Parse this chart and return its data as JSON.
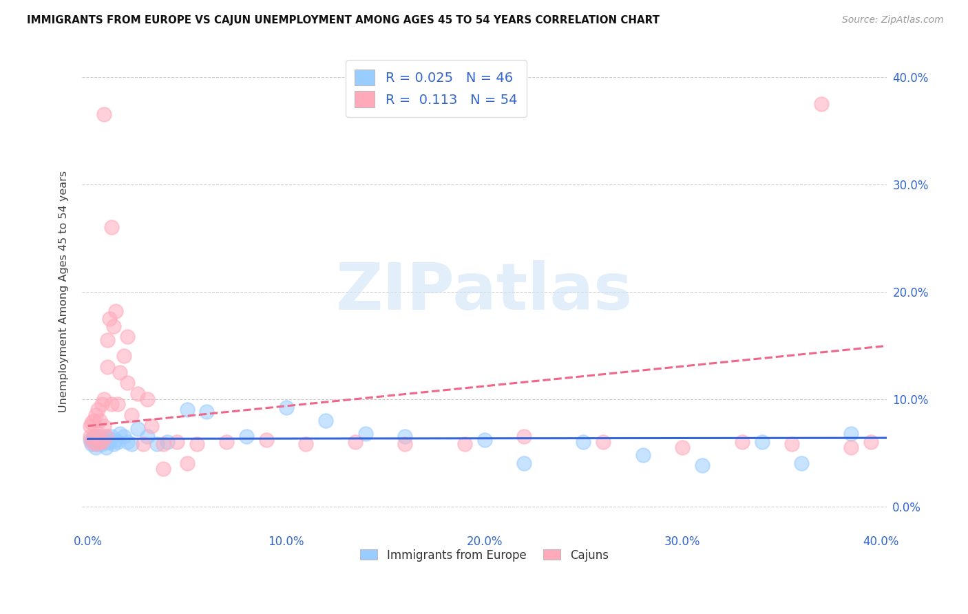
{
  "title": "IMMIGRANTS FROM EUROPE VS CAJUN UNEMPLOYMENT AMONG AGES 45 TO 54 YEARS CORRELATION CHART",
  "source": "Source: ZipAtlas.com",
  "ylabel": "Unemployment Among Ages 45 to 54 years",
  "xlim": [
    -0.003,
    0.403
  ],
  "ylim": [
    -0.022,
    0.422
  ],
  "xticks": [
    0.0,
    0.1,
    0.2,
    0.3,
    0.4
  ],
  "yticks": [
    0.0,
    0.1,
    0.2,
    0.3,
    0.4
  ],
  "xtick_labels": [
    "0.0%",
    "10.0%",
    "20.0%",
    "30.0%",
    "40.0%"
  ],
  "ytick_labels_right": [
    "0.0%",
    "10.0%",
    "20.0%",
    "30.0%",
    "40.0%"
  ],
  "legend_label1": "Immigrants from Europe",
  "legend_label2": "Cajuns",
  "R1": "0.025",
  "N1": "46",
  "R2": "0.113",
  "N2": "54",
  "blue_color": "#99ccff",
  "pink_color": "#ffaabb",
  "trend_blue_color": "#3366dd",
  "trend_pink_color": "#ee6688",
  "legend_text_color": "#3366cc",
  "background_color": "#ffffff",
  "watermark_color": "#d0e4f5",
  "blue_scatter_x": [
    0.001,
    0.002,
    0.003,
    0.003,
    0.004,
    0.004,
    0.005,
    0.005,
    0.006,
    0.006,
    0.007,
    0.007,
    0.008,
    0.008,
    0.009,
    0.009,
    0.01,
    0.01,
    0.011,
    0.012,
    0.013,
    0.014,
    0.015,
    0.016,
    0.018,
    0.02,
    0.022,
    0.025,
    0.03,
    0.035,
    0.04,
    0.05,
    0.06,
    0.08,
    0.1,
    0.12,
    0.14,
    0.16,
    0.2,
    0.22,
    0.25,
    0.28,
    0.31,
    0.34,
    0.36,
    0.385
  ],
  "blue_scatter_y": [
    0.062,
    0.058,
    0.064,
    0.06,
    0.055,
    0.065,
    0.058,
    0.062,
    0.06,
    0.065,
    0.062,
    0.058,
    0.06,
    0.062,
    0.055,
    0.065,
    0.06,
    0.062,
    0.06,
    0.065,
    0.058,
    0.062,
    0.06,
    0.068,
    0.065,
    0.06,
    0.058,
    0.072,
    0.065,
    0.058,
    0.06,
    0.09,
    0.088,
    0.065,
    0.092,
    0.08,
    0.068,
    0.065,
    0.062,
    0.04,
    0.06,
    0.048,
    0.038,
    0.06,
    0.04,
    0.068
  ],
  "pink_scatter_x": [
    0.001,
    0.001,
    0.002,
    0.002,
    0.003,
    0.003,
    0.004,
    0.004,
    0.005,
    0.005,
    0.006,
    0.006,
    0.007,
    0.007,
    0.008,
    0.008,
    0.009,
    0.01,
    0.01,
    0.011,
    0.012,
    0.013,
    0.014,
    0.015,
    0.016,
    0.018,
    0.02,
    0.022,
    0.025,
    0.028,
    0.032,
    0.038,
    0.045,
    0.055,
    0.07,
    0.09,
    0.11,
    0.135,
    0.16,
    0.19,
    0.22,
    0.26,
    0.3,
    0.33,
    0.355,
    0.37,
    0.385,
    0.395,
    0.012,
    0.008,
    0.02,
    0.03,
    0.038,
    0.05
  ],
  "pink_scatter_y": [
    0.065,
    0.075,
    0.06,
    0.078,
    0.065,
    0.08,
    0.058,
    0.085,
    0.068,
    0.09,
    0.06,
    0.08,
    0.06,
    0.095,
    0.075,
    0.1,
    0.065,
    0.13,
    0.155,
    0.175,
    0.095,
    0.168,
    0.182,
    0.095,
    0.125,
    0.14,
    0.158,
    0.085,
    0.105,
    0.058,
    0.075,
    0.058,
    0.06,
    0.058,
    0.06,
    0.062,
    0.058,
    0.06,
    0.058,
    0.058,
    0.065,
    0.06,
    0.055,
    0.06,
    0.058,
    0.375,
    0.055,
    0.06,
    0.26,
    0.365,
    0.115,
    0.1,
    0.035,
    0.04
  ],
  "blue_trend_intercept": 0.063,
  "blue_trend_slope": 0.002,
  "pink_trend_intercept": 0.075,
  "pink_trend_slope": 0.185
}
